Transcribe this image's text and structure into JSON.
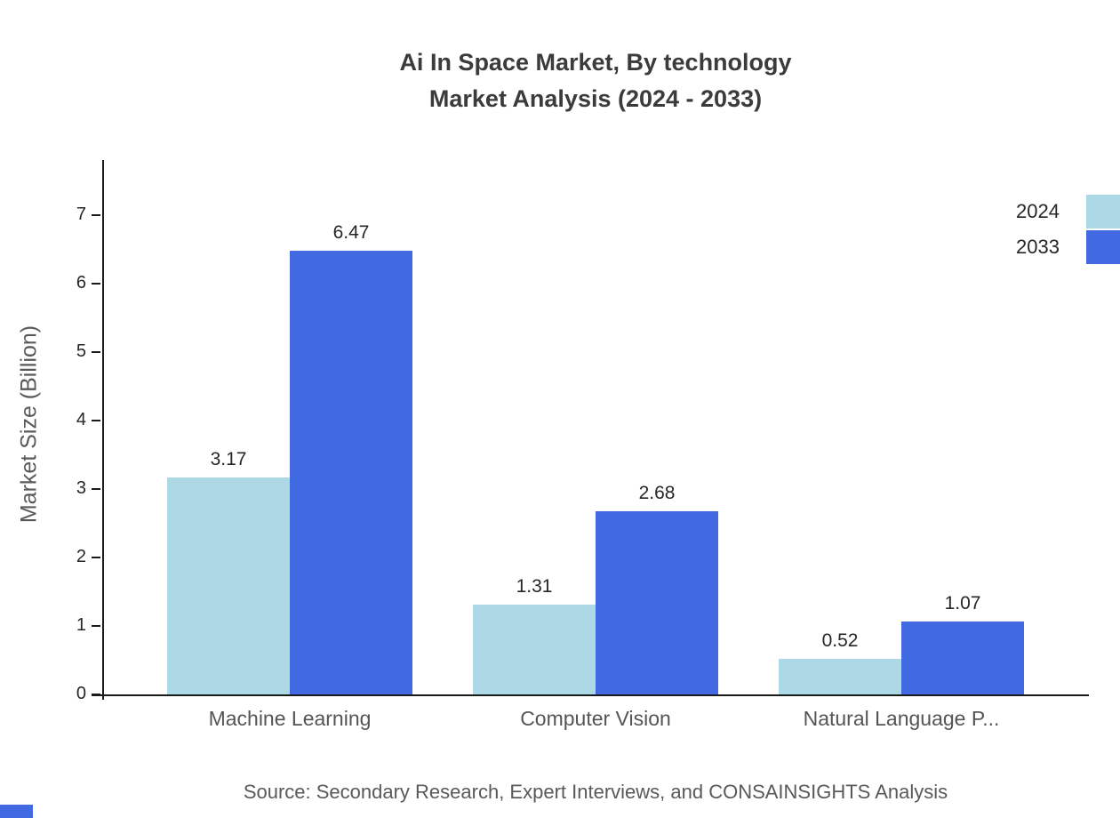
{
  "title": {
    "line1": "Ai In Space Market, By technology",
    "line2": "Market Analysis (2024 - 2033)"
  },
  "source_text": "Source: Secondary Research, Expert Interviews, and CONSAINSIGHTS Analysis",
  "colors": {
    "series_2024": "#ADD8E6",
    "series_2033": "#4169E1",
    "title_text": "#3b3b3b",
    "axis_text": "#262626",
    "muted_text": "#595959"
  },
  "chart_data": {
    "type": "bar",
    "title": "Ai In Space Market, By technology Market Analysis (2024 - 2033)",
    "categories": [
      "Machine Learning",
      "Computer Vision",
      "Natural Language P..."
    ],
    "series": [
      {
        "name": "2024",
        "color": "#ADD8E6",
        "values": [
          3.17,
          1.31,
          0.52
        ]
      },
      {
        "name": "2033",
        "color": "#4169E1",
        "values": [
          6.47,
          2.68,
          1.07
        ]
      }
    ],
    "xlabel": "",
    "ylabel": "Market Size (Billion)",
    "ylim": [
      0,
      7.8
    ],
    "yticks": [
      0,
      1,
      2,
      3,
      4,
      5,
      6,
      7
    ],
    "grid": false,
    "legend": {
      "position": "top-right",
      "entries": [
        "2024",
        "2033"
      ]
    }
  }
}
